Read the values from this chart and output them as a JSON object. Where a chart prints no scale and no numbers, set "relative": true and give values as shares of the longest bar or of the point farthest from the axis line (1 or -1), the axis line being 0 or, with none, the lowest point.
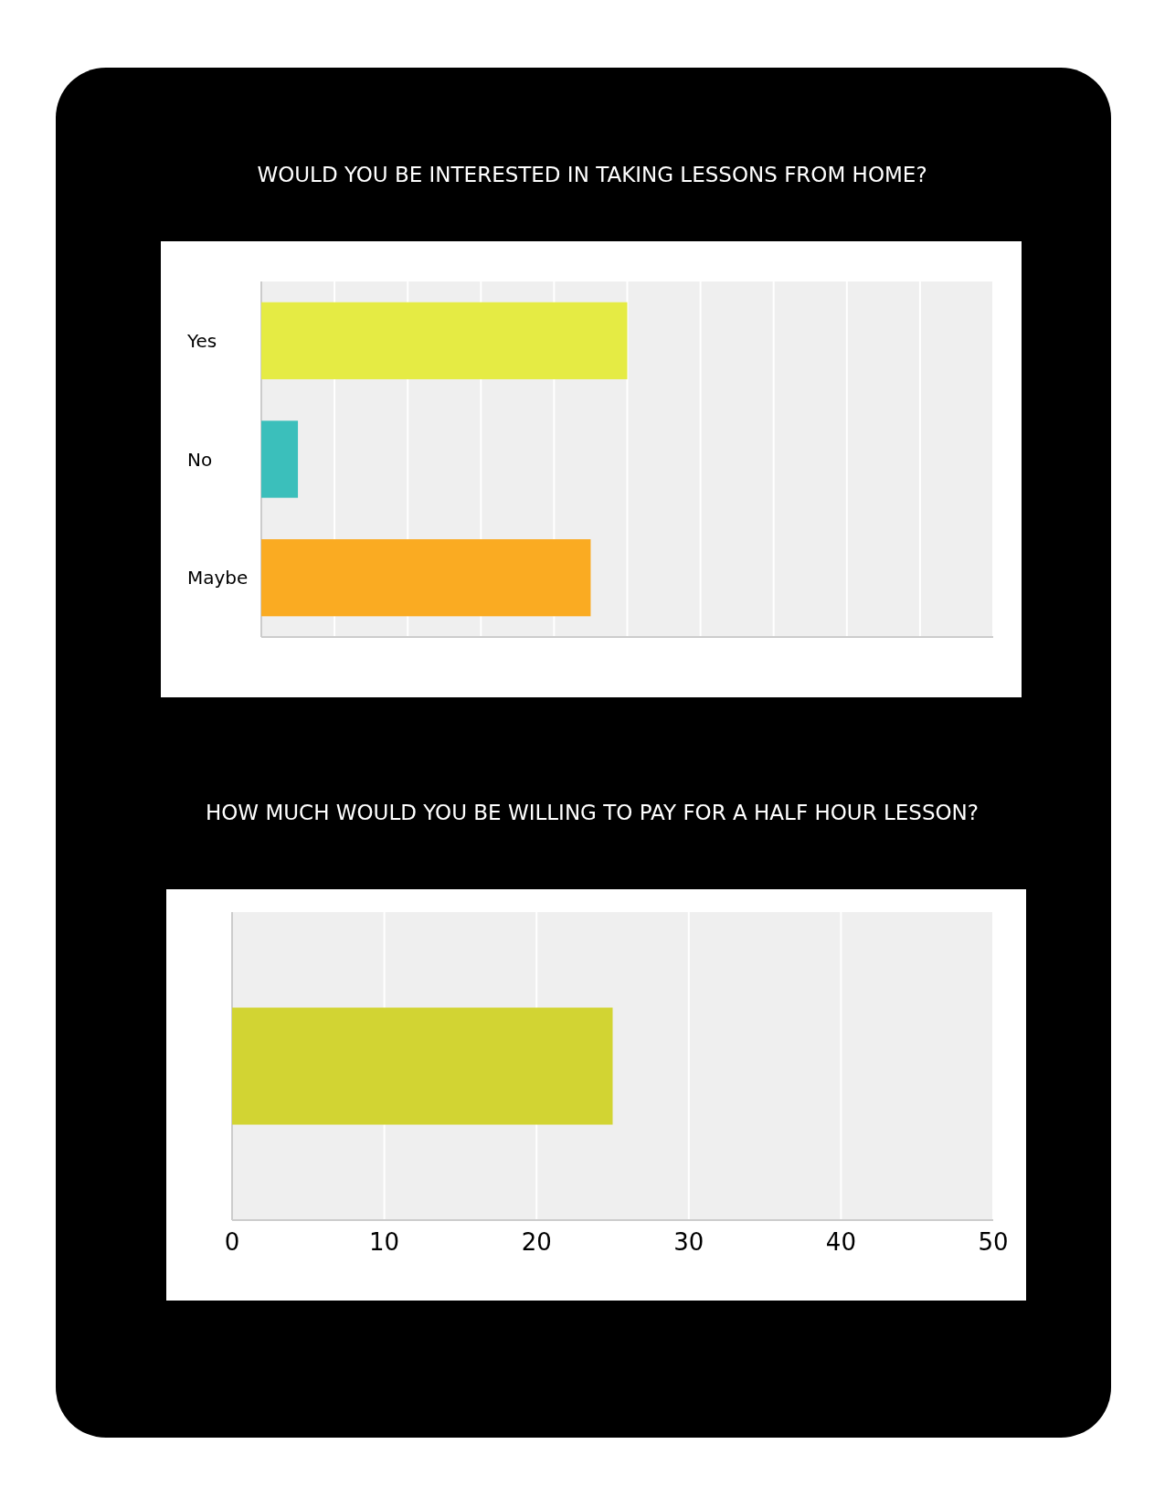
{
  "chart_data": [
    {
      "type": "bar",
      "title": "WOULD YOU BE INTERESTED IN TAKING LESSONS FROM HOME?",
      "orientation": "horizontal",
      "relative": true,
      "grid": true,
      "categories": [
        "Yes",
        "No",
        "Maybe"
      ],
      "values": [
        1,
        0.1,
        0.9
      ],
      "colors": [
        "#e5eb44",
        "#3bbfbb",
        "#faab22"
      ]
    },
    {
      "type": "bar",
      "title": "HOW MUCH WOULD YOU BE WILLING TO PAY FOR A HALF HOUR LESSON?",
      "orientation": "horizontal",
      "grid": "x",
      "categories": [
        null
      ],
      "values": [
        25
      ],
      "colors": [
        "#d2d433"
      ],
      "xlim": [
        0,
        50
      ],
      "xticks": [
        0,
        10,
        20,
        30,
        40,
        50
      ]
    }
  ]
}
